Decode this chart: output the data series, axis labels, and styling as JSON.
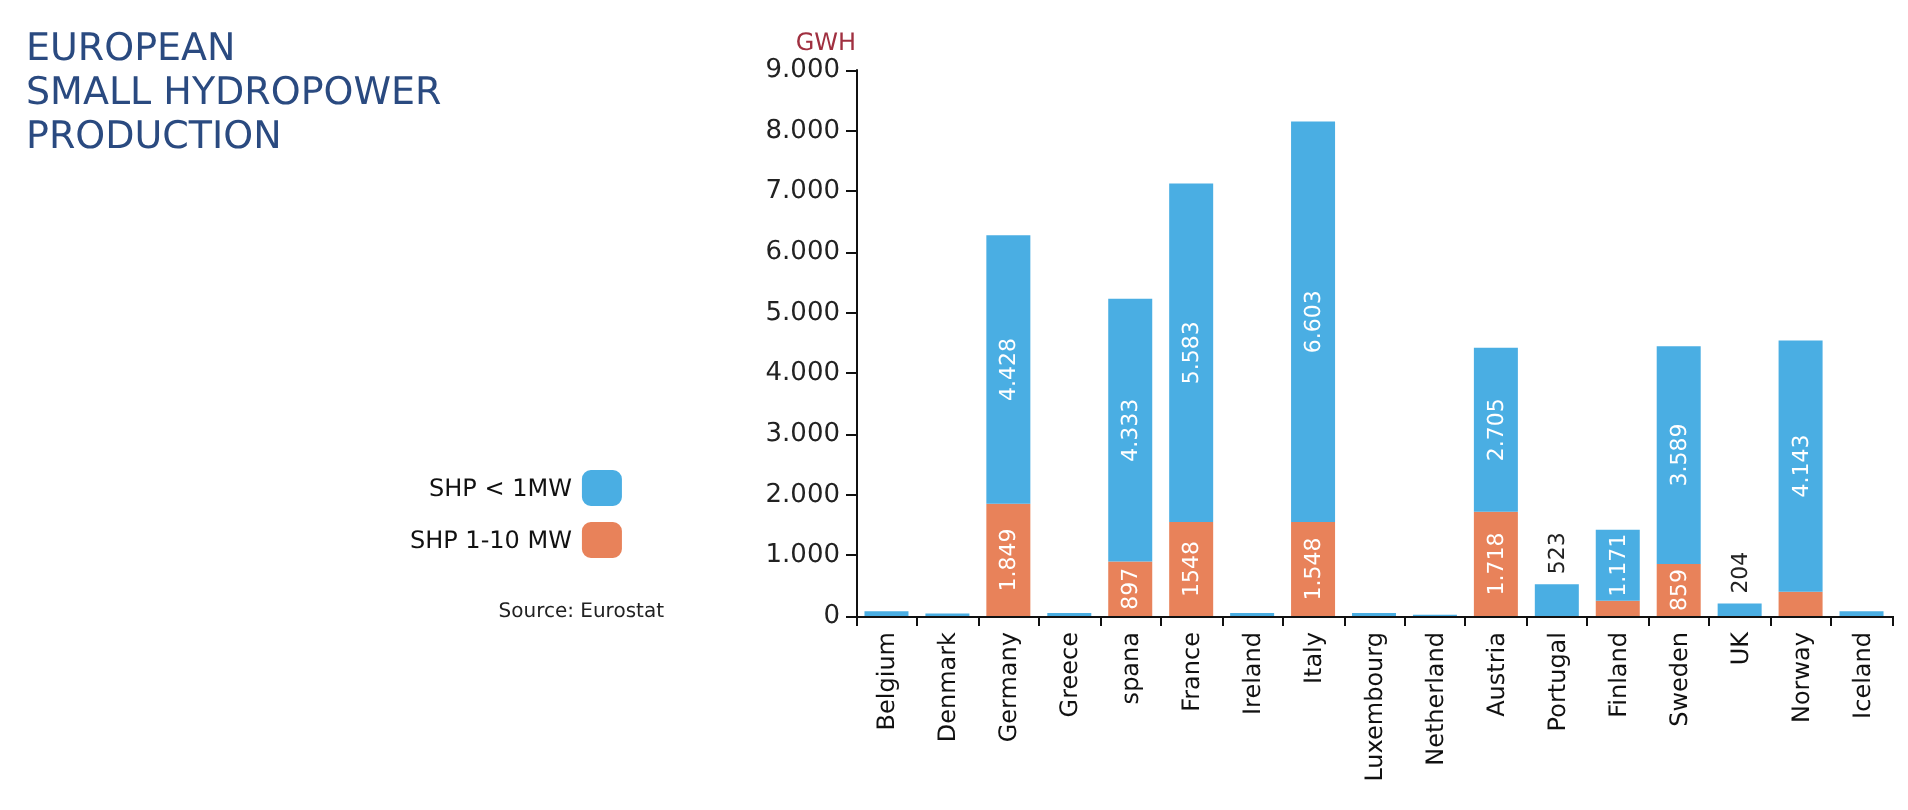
{
  "chart_data": {
    "type": "bar",
    "title": "EUROPEAN\nSMALL HYDROPOWER\nPRODUCTION",
    "ylabel": "GWH",
    "annotations": [
      "Source: Eurostat"
    ],
    "categories": [
      "Belgium",
      "Denmark",
      "Germany",
      "Greece",
      "spana",
      "France",
      "Ireland",
      "Italy",
      "Luxembourg",
      "Netherland",
      "Austria",
      "Portugal",
      "Finland",
      "Sweden",
      "UK",
      "Norway",
      "Iceland"
    ],
    "stacked": true,
    "legend": "left",
    "grid": false,
    "ylim": [
      0,
      9000
    ],
    "yticks": [
      0,
      {
        "value": 1000,
        "label": "1.000"
      },
      {
        "value": 2000,
        "label": "2.000"
      },
      {
        "value": 3000,
        "label": "3.000"
      },
      {
        "value": 4000,
        "label": "4.000"
      },
      {
        "value": 5000,
        "label": "5.000"
      },
      {
        "value": 6000,
        "label": "6.000"
      },
      {
        "value": 7000,
        "label": "7.000"
      },
      {
        "value": 8000,
        "label": "8.000"
      },
      {
        "value": 9000,
        "label": "9.000"
      }
    ],
    "series": [
      {
        "name": "SHP 1-10 MW",
        "color": "#e8825a",
        "values": [
          null,
          null,
          1849,
          null,
          897,
          1548,
          null,
          1548,
          null,
          null,
          1718,
          null,
          250,
          859,
          null,
          400,
          null
        ],
        "value_labels": [
          null,
          null,
          "1.849",
          null,
          "897",
          "1548",
          null,
          "1.548",
          null,
          null,
          "1.718",
          null,
          null,
          "859",
          null,
          null,
          null
        ]
      },
      {
        "name": "SHP < 1MW",
        "color": "#4aaee3",
        "values": [
          80,
          40,
          4428,
          50,
          4333,
          5583,
          50,
          6603,
          50,
          20,
          2705,
          523,
          1171,
          3589,
          204,
          4143,
          80
        ],
        "value_labels": [
          null,
          null,
          "4.428",
          null,
          "4.333",
          "5.583",
          null,
          "6.603",
          null,
          null,
          "2.705",
          "523",
          "1.171",
          "3.589",
          "204",
          "4.143",
          null
        ]
      }
    ]
  }
}
